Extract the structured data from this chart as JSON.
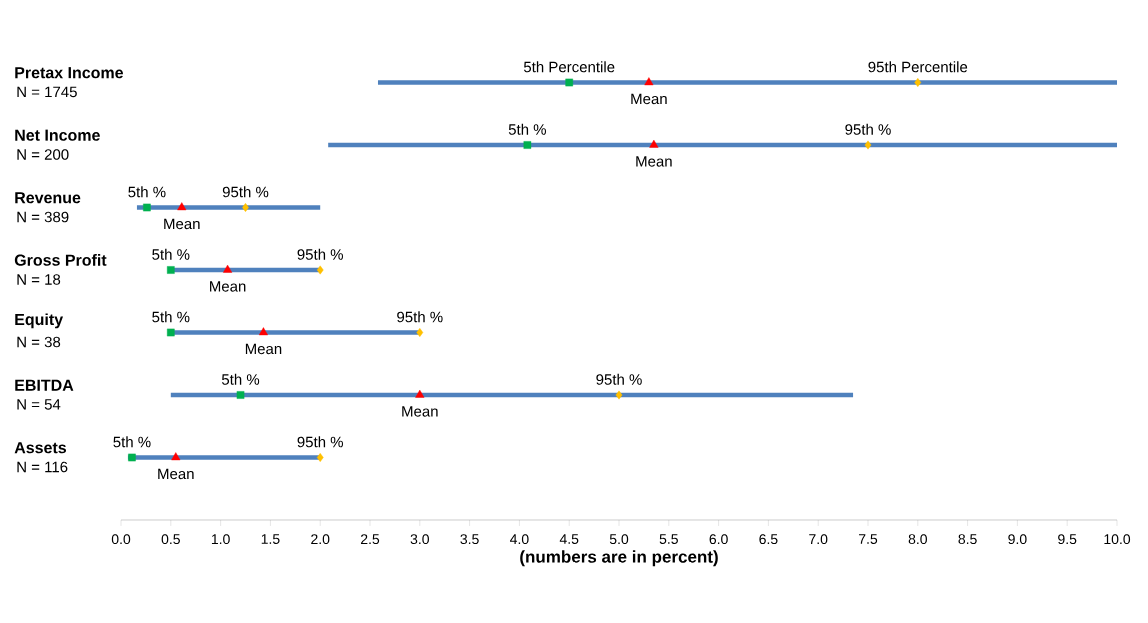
{
  "chart_data": {
    "type": "bar",
    "orientation": "horizontal",
    "xlabel": "(numbers are in percent)",
    "categories": [
      "Pretax Income",
      "Net Income",
      "Revenue",
      "Gross Profit",
      "Equity",
      "EBITDA",
      "Assets"
    ],
    "series": [
      {
        "type": "bar",
        "color": "#4f81bd",
        "base": [
          2.58,
          2.08,
          0.16,
          0.5,
          0.5,
          0.5,
          0.07
        ],
        "values": [
          7.42,
          7.92,
          1.84,
          1.5,
          2.5,
          6.85,
          1.93
        ]
      },
      {
        "type": "scatter",
        "marker": "square",
        "color": "#00b050",
        "values": [
          4.5,
          4.08,
          0.26,
          0.5,
          0.5,
          1.2,
          0.11
        ]
      },
      {
        "type": "scatter",
        "marker": "triangle",
        "color": "#ff0000",
        "values": [
          5.3,
          5.35,
          0.61,
          1.07,
          1.43,
          3.0,
          0.55
        ]
      },
      {
        "type": "scatter",
        "marker": "diamond",
        "color": "#ffc000",
        "values": [
          8.0,
          7.5,
          1.25,
          2.0,
          3.0,
          5.0,
          2.0
        ]
      }
    ],
    "xlim": [
      0,
      10
    ],
    "xticks": [
      {
        "value": 0,
        "label": "0.0"
      },
      {
        "value": 0.5,
        "label": "0.5"
      },
      {
        "value": 1,
        "label": "1.0"
      },
      {
        "value": 1.5,
        "label": "1.5"
      },
      {
        "value": 2,
        "label": "2.0"
      },
      {
        "value": 2.5,
        "label": "2.5"
      },
      {
        "value": 3,
        "label": "3.0"
      },
      {
        "value": 3.5,
        "label": "3.5"
      },
      {
        "value": 4,
        "label": "4.0"
      },
      {
        "value": 4.5,
        "label": "4.5"
      },
      {
        "value": 5,
        "label": "5.0"
      },
      {
        "value": 5.5,
        "label": "5.5"
      },
      {
        "value": 6,
        "label": "6.0"
      },
      {
        "value": 6.5,
        "label": "6.5"
      },
      {
        "value": 7,
        "label": "7.0"
      },
      {
        "value": 7.5,
        "label": "7.5"
      },
      {
        "value": 8,
        "label": "8.0"
      },
      {
        "value": 8.5,
        "label": "8.5"
      },
      {
        "value": 9,
        "label": "9.0"
      },
      {
        "value": 9.5,
        "label": "9.5"
      },
      {
        "value": 10,
        "label": "10.0"
      }
    ],
    "annotations": [
      "N = 1745",
      "N = 200",
      "N = 389",
      "N = 18",
      "N = 38",
      "N = 54",
      "N = 116",
      "5th Percentile",
      "Mean",
      "95th Percentile",
      "5th %",
      "Mean",
      "95th %",
      "5th %",
      "Mean",
      "95th %",
      "5th %",
      "Mean",
      "95th %",
      "5th %",
      "Mean",
      "95th %",
      "5th %",
      "Mean",
      "95th %",
      "5th %",
      "Mean",
      "95th %"
    ]
  }
}
